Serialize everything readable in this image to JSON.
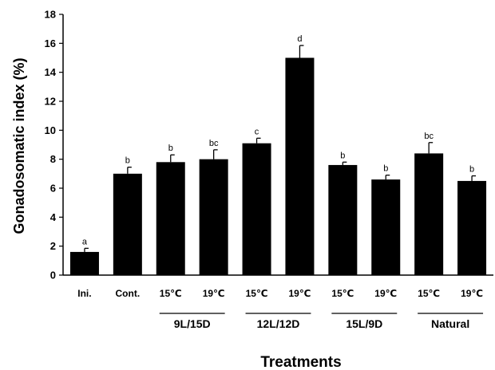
{
  "chart_data": {
    "type": "bar",
    "title": "",
    "xlabel": "Treatments",
    "ylabel": "Gonadosomatic index (%)",
    "ylim": [
      0,
      18
    ],
    "yticks": [
      "0",
      "2",
      "4",
      "6",
      "8",
      "10",
      "12",
      "14",
      "16",
      "18"
    ],
    "categories": [
      "Ini.",
      "Cont.",
      "15℃",
      "19℃",
      "15℃",
      "19℃",
      "15℃",
      "19℃",
      "15℃",
      "19℃"
    ],
    "values": [
      1.6,
      7.0,
      7.8,
      8.0,
      9.1,
      15.0,
      7.6,
      6.6,
      8.4,
      6.5
    ],
    "errors": [
      0.25,
      0.45,
      0.5,
      0.65,
      0.35,
      0.85,
      0.2,
      0.3,
      0.75,
      0.35
    ],
    "significance": [
      "a",
      "b",
      "b",
      "bc",
      "c",
      "d",
      "b",
      "b",
      "bc",
      "b"
    ],
    "groups": [
      {
        "label": "9L/15D",
        "start": 2,
        "end": 3
      },
      {
        "label": "12L/12D",
        "start": 4,
        "end": 5
      },
      {
        "label": "15L/9D",
        "start": 6,
        "end": 7
      },
      {
        "label": "Natural",
        "start": 8,
        "end": 9
      }
    ],
    "bar_color": "#000000",
    "grid": false,
    "legend": "none"
  }
}
